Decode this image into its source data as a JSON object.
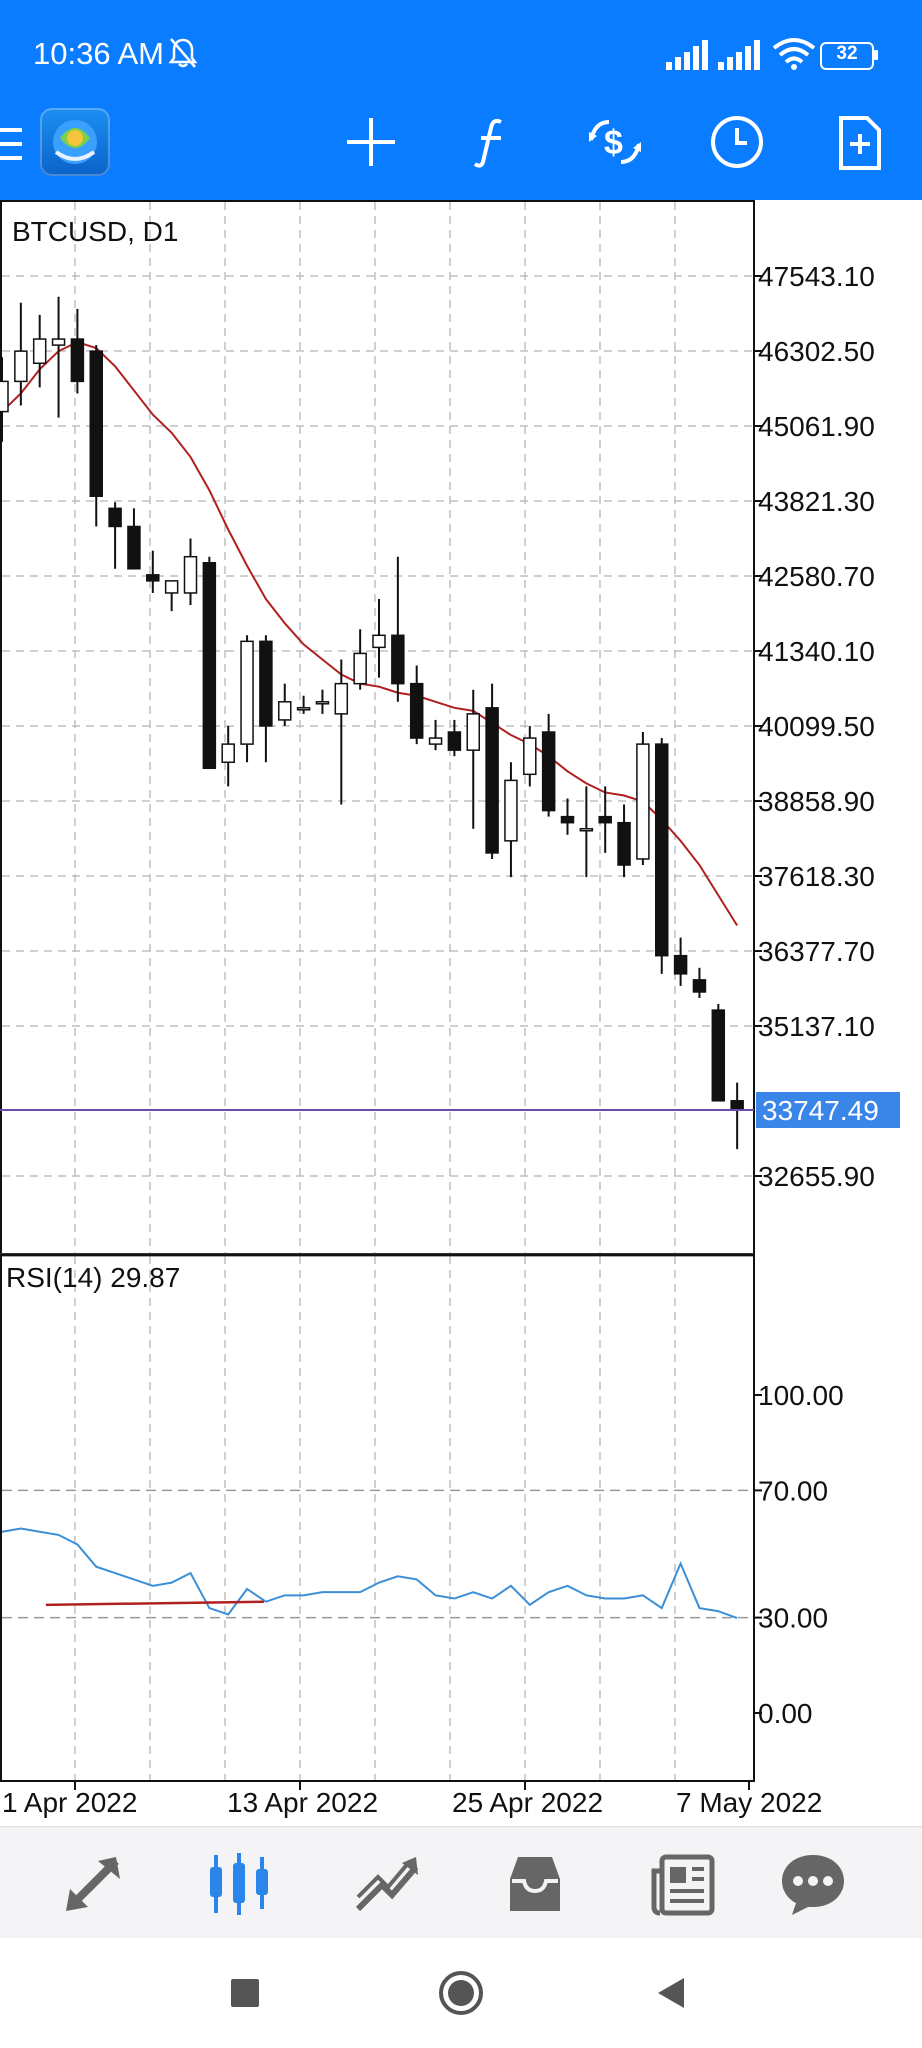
{
  "status_bar": {
    "time": "10:36 AM",
    "battery": "32"
  },
  "colors": {
    "accent": "#0a7cff",
    "ma_line": "#b02020",
    "rsi_line": "#3b8fd6",
    "price_line": "#6b4ca8",
    "price_tag_bg": "#3a86e8"
  },
  "toolbar": {
    "icons": [
      "menu-icon",
      "app-logo-icon",
      "crosshair-icon",
      "function-icon",
      "trade-icon",
      "clock-icon",
      "new-document-icon"
    ]
  },
  "chart": {
    "symbol_label": "BTCUSD, D1",
    "current_price": "33747.49",
    "price_axis": [
      "47543.10",
      "46302.50",
      "45061.90",
      "43821.30",
      "42580.70",
      "41340.10",
      "40099.50",
      "38858.90",
      "37618.30",
      "36377.70",
      "35137.10",
      "32655.90"
    ],
    "rsi_label": "RSI(14) 29.87",
    "rsi_axis": [
      "100.00",
      "70.00",
      "30.00",
      "0.00"
    ],
    "date_axis": [
      "1 Apr 2022",
      "13 Apr 2022",
      "25 Apr 2022",
      "7 May 2022"
    ]
  },
  "chart_data": {
    "type": "candlestick",
    "symbol": "BTCUSD",
    "timeframe": "D1",
    "candles": [
      {
        "date": "2022-03-31",
        "open": 45300,
        "high": 46200,
        "low": 44800,
        "close": 45800
      },
      {
        "date": "2022-04-01",
        "open": 45800,
        "high": 47100,
        "low": 45400,
        "close": 46300
      },
      {
        "date": "2022-04-02",
        "open": 46100,
        "high": 46900,
        "low": 45700,
        "close": 46500
      },
      {
        "date": "2022-04-03",
        "open": 46400,
        "high": 47200,
        "low": 45200,
        "close": 46500
      },
      {
        "date": "2022-04-04",
        "open": 46500,
        "high": 47000,
        "low": 45600,
        "close": 45800
      },
      {
        "date": "2022-04-05",
        "open": 46300,
        "high": 46400,
        "low": 43400,
        "close": 43900
      },
      {
        "date": "2022-04-06",
        "open": 43700,
        "high": 43800,
        "low": 42700,
        "close": 43400
      },
      {
        "date": "2022-04-07",
        "open": 43400,
        "high": 43700,
        "low": 42700,
        "close": 42700
      },
      {
        "date": "2022-04-08",
        "open": 42600,
        "high": 43000,
        "low": 42300,
        "close": 42500
      },
      {
        "date": "2022-04-09",
        "open": 42300,
        "high": 42500,
        "low": 42000,
        "close": 42500
      },
      {
        "date": "2022-04-10",
        "open": 42300,
        "high": 43200,
        "low": 42100,
        "close": 42900
      },
      {
        "date": "2022-04-11",
        "open": 42800,
        "high": 42900,
        "low": 39400,
        "close": 39400
      },
      {
        "date": "2022-04-12",
        "open": 39500,
        "high": 40100,
        "low": 39100,
        "close": 39800
      },
      {
        "date": "2022-04-13",
        "open": 39800,
        "high": 41600,
        "low": 39500,
        "close": 41500
      },
      {
        "date": "2022-04-14",
        "open": 41500,
        "high": 41600,
        "low": 39500,
        "close": 40100
      },
      {
        "date": "2022-04-15",
        "open": 40200,
        "high": 40800,
        "low": 40100,
        "close": 40500
      },
      {
        "date": "2022-04-16",
        "open": 40400,
        "high": 40600,
        "low": 40300,
        "close": 40400
      },
      {
        "date": "2022-04-17",
        "open": 40500,
        "high": 40700,
        "low": 40300,
        "close": 40500
      },
      {
        "date": "2022-04-18",
        "open": 40300,
        "high": 41200,
        "low": 38800,
        "close": 40800
      },
      {
        "date": "2022-04-19",
        "open": 40800,
        "high": 41700,
        "low": 40700,
        "close": 41300
      },
      {
        "date": "2022-04-20",
        "open": 41400,
        "high": 42200,
        "low": 40900,
        "close": 41600
      },
      {
        "date": "2022-04-21",
        "open": 41600,
        "high": 42900,
        "low": 40500,
        "close": 40800
      },
      {
        "date": "2022-04-22",
        "open": 40800,
        "high": 41100,
        "low": 39800,
        "close": 39900
      },
      {
        "date": "2022-04-23",
        "open": 39800,
        "high": 40200,
        "low": 39700,
        "close": 39900
      },
      {
        "date": "2022-04-24",
        "open": 40000,
        "high": 40200,
        "low": 39600,
        "close": 39700
      },
      {
        "date": "2022-04-25",
        "open": 39700,
        "high": 40700,
        "low": 38400,
        "close": 40300
      },
      {
        "date": "2022-04-26",
        "open": 40400,
        "high": 40800,
        "low": 37900,
        "close": 38000
      },
      {
        "date": "2022-04-27",
        "open": 38200,
        "high": 39500,
        "low": 37600,
        "close": 39200
      },
      {
        "date": "2022-04-28",
        "open": 39300,
        "high": 40100,
        "low": 39100,
        "close": 39900
      },
      {
        "date": "2022-04-29",
        "open": 40000,
        "high": 40300,
        "low": 38600,
        "close": 38700
      },
      {
        "date": "2022-04-30",
        "open": 38600,
        "high": 38900,
        "low": 38300,
        "close": 38500
      },
      {
        "date": "2022-05-01",
        "open": 38400,
        "high": 39100,
        "low": 37600,
        "close": 38400
      },
      {
        "date": "2022-05-02",
        "open": 38600,
        "high": 39100,
        "low": 38000,
        "close": 38500
      },
      {
        "date": "2022-05-03",
        "open": 38500,
        "high": 38800,
        "low": 37600,
        "close": 37800
      },
      {
        "date": "2022-05-04",
        "open": 37900,
        "high": 40000,
        "low": 37800,
        "close": 39800
      },
      {
        "date": "2022-05-05",
        "open": 39800,
        "high": 39900,
        "low": 36000,
        "close": 36300
      },
      {
        "date": "2022-05-06",
        "open": 36300,
        "high": 36600,
        "low": 35800,
        "close": 36000
      },
      {
        "date": "2022-05-07",
        "open": 35900,
        "high": 36100,
        "low": 35600,
        "close": 35700
      },
      {
        "date": "2022-05-08",
        "open": 35400,
        "high": 35500,
        "low": 33900,
        "close": 33900
      },
      {
        "date": "2022-05-09",
        "open": 33900,
        "high": 34200,
        "low": 33100,
        "close": 33747.49
      }
    ],
    "moving_average": [
      45300,
      45600,
      46000,
      46300,
      46450,
      46350,
      46050,
      45650,
      45250,
      44950,
      44550,
      44000,
      43350,
      42750,
      42200,
      41800,
      41450,
      41200,
      40950,
      40800,
      40750,
      40650,
      40600,
      40500,
      40400,
      40350,
      40150,
      39950,
      39800,
      39600,
      39350,
      39150,
      39000,
      38950,
      38850,
      38550,
      38200,
      37800,
      37300,
      36800
    ],
    "rsi": [
      {
        "date": "2022-03-31",
        "value": 57
      },
      {
        "date": "2022-04-01",
        "value": 58
      },
      {
        "date": "2022-04-02",
        "value": 57
      },
      {
        "date": "2022-04-03",
        "value": 56
      },
      {
        "date": "2022-04-04",
        "value": 53
      },
      {
        "date": "2022-04-05",
        "value": 46
      },
      {
        "date": "2022-04-06",
        "value": 44
      },
      {
        "date": "2022-04-07",
        "value": 42
      },
      {
        "date": "2022-04-08",
        "value": 40
      },
      {
        "date": "2022-04-09",
        "value": 41
      },
      {
        "date": "2022-04-10",
        "value": 44
      },
      {
        "date": "2022-04-11",
        "value": 33
      },
      {
        "date": "2022-04-12",
        "value": 31
      },
      {
        "date": "2022-04-13",
        "value": 39
      },
      {
        "date": "2022-04-14",
        "value": 35
      },
      {
        "date": "2022-04-15",
        "value": 37
      },
      {
        "date": "2022-04-16",
        "value": 37
      },
      {
        "date": "2022-04-17",
        "value": 38
      },
      {
        "date": "2022-04-18",
        "value": 38
      },
      {
        "date": "2022-04-19",
        "value": 38
      },
      {
        "date": "2022-04-20",
        "value": 41
      },
      {
        "date": "2022-04-21",
        "value": 43
      },
      {
        "date": "2022-04-22",
        "value": 42
      },
      {
        "date": "2022-04-23",
        "value": 37
      },
      {
        "date": "2022-04-24",
        "value": 36
      },
      {
        "date": "2022-04-25",
        "value": 38
      },
      {
        "date": "2022-04-26",
        "value": 36
      },
      {
        "date": "2022-04-27",
        "value": 40
      },
      {
        "date": "2022-04-28",
        "value": 34
      },
      {
        "date": "2022-04-29",
        "value": 38
      },
      {
        "date": "2022-04-30",
        "value": 40
      },
      {
        "date": "2022-05-01",
        "value": 37
      },
      {
        "date": "2022-05-02",
        "value": 36
      },
      {
        "date": "2022-05-03",
        "value": 36
      },
      {
        "date": "2022-05-04",
        "value": 37
      },
      {
        "date": "2022-05-05",
        "value": 33
      },
      {
        "date": "2022-05-06",
        "value": 47
      },
      {
        "date": "2022-05-07",
        "value": 33
      },
      {
        "date": "2022-05-08",
        "value": 32
      },
      {
        "date": "2022-05-09",
        "value": 29.87
      }
    ],
    "rsi_trendline": [
      {
        "date": "2022-04-01",
        "value": 34
      },
      {
        "date": "2022-04-14",
        "value": 35
      }
    ],
    "price_ylim": [
      32200,
      48400
    ],
    "rsi_ylim": [
      0,
      100
    ],
    "rsi_levels": [
      70,
      30
    ],
    "grid": true
  },
  "bottom_nav": [
    "quotes-icon",
    "chart-icon",
    "trade-icon",
    "history-icon",
    "news-icon",
    "chat-icon"
  ],
  "system_nav": [
    "recents-icon",
    "home-icon",
    "back-icon"
  ]
}
